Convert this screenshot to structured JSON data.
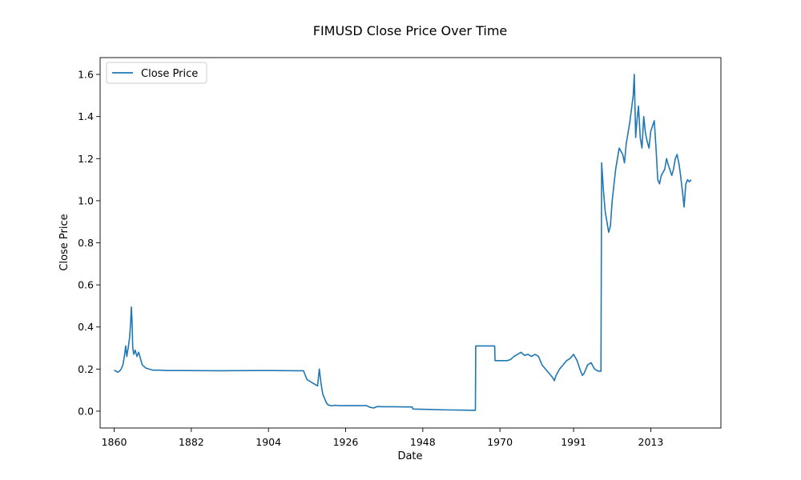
{
  "chart_data": {
    "type": "line",
    "title": "FIMUSD Close Price Over Time",
    "xlabel": "Date",
    "ylabel": "Close Price",
    "xlim": [
      1856.0,
      2033.0
    ],
    "ylim": [
      -0.08,
      1.68
    ],
    "x_ticks": [
      1860,
      1882,
      1904,
      1926,
      1948,
      1970,
      1991,
      2013
    ],
    "x_tick_labels": [
      "1860",
      "1882",
      "1904",
      "1926",
      "1948",
      "1970",
      "1991",
      "2013"
    ],
    "y_ticks": [
      0.0,
      0.2,
      0.4,
      0.6,
      0.8,
      1.0,
      1.2,
      1.4,
      1.6
    ],
    "y_tick_labels": [
      "0.0",
      "0.2",
      "0.4",
      "0.6",
      "0.8",
      "1.0",
      "1.2",
      "1.4",
      "1.6"
    ],
    "legend": {
      "position": "top-left",
      "entries": [
        "Close Price"
      ]
    },
    "grid": false,
    "series": [
      {
        "name": "Close Price",
        "color": "#1f77b4",
        "points": [
          [
            1860.0,
            0.195
          ],
          [
            1860.5,
            0.19
          ],
          [
            1861.0,
            0.185
          ],
          [
            1861.5,
            0.19
          ],
          [
            1862.0,
            0.2
          ],
          [
            1862.5,
            0.22
          ],
          [
            1863.0,
            0.27
          ],
          [
            1863.3,
            0.31
          ],
          [
            1863.6,
            0.26
          ],
          [
            1864.0,
            0.3
          ],
          [
            1864.4,
            0.35
          ],
          [
            1864.7,
            0.42
          ],
          [
            1864.9,
            0.495
          ],
          [
            1865.1,
            0.43
          ],
          [
            1865.3,
            0.3
          ],
          [
            1865.6,
            0.27
          ],
          [
            1866.0,
            0.29
          ],
          [
            1866.5,
            0.26
          ],
          [
            1867.0,
            0.28
          ],
          [
            1867.5,
            0.25
          ],
          [
            1868.0,
            0.22
          ],
          [
            1869.0,
            0.205
          ],
          [
            1870.0,
            0.2
          ],
          [
            1871.0,
            0.195
          ],
          [
            1873.0,
            0.195
          ],
          [
            1875.0,
            0.193
          ],
          [
            1880.0,
            0.193
          ],
          [
            1890.0,
            0.192
          ],
          [
            1900.0,
            0.193
          ],
          [
            1905.0,
            0.193
          ],
          [
            1912.0,
            0.192
          ],
          [
            1914.0,
            0.192
          ],
          [
            1914.5,
            0.17
          ],
          [
            1915.0,
            0.15
          ],
          [
            1916.0,
            0.14
          ],
          [
            1917.0,
            0.13
          ],
          [
            1918.0,
            0.12
          ],
          [
            1918.5,
            0.2
          ],
          [
            1919.0,
            0.13
          ],
          [
            1919.5,
            0.08
          ],
          [
            1920.0,
            0.06
          ],
          [
            1920.5,
            0.04
          ],
          [
            1921.0,
            0.03
          ],
          [
            1922.0,
            0.025
          ],
          [
            1923.0,
            0.028
          ],
          [
            1924.0,
            0.026
          ],
          [
            1925.0,
            0.026
          ],
          [
            1926.0,
            0.026
          ],
          [
            1928.0,
            0.026
          ],
          [
            1930.0,
            0.026
          ],
          [
            1932.0,
            0.026
          ],
          [
            1933.0,
            0.018
          ],
          [
            1934.0,
            0.015
          ],
          [
            1935.0,
            0.022
          ],
          [
            1937.0,
            0.021
          ],
          [
            1940.0,
            0.021
          ],
          [
            1944.0,
            0.02
          ],
          [
            1945.0,
            0.02
          ],
          [
            1945.2,
            0.01
          ],
          [
            1950.0,
            0.008
          ],
          [
            1955.0,
            0.006
          ],
          [
            1960.0,
            0.005
          ],
          [
            1963.0,
            0.004
          ],
          [
            1963.1,
            0.31
          ],
          [
            1967.0,
            0.31
          ],
          [
            1968.5,
            0.31
          ],
          [
            1968.6,
            0.24
          ],
          [
            1970.0,
            0.24
          ],
          [
            1972.0,
            0.24
          ],
          [
            1973.0,
            0.245
          ],
          [
            1974.0,
            0.26
          ],
          [
            1975.0,
            0.27
          ],
          [
            1976.0,
            0.28
          ],
          [
            1977.0,
            0.265
          ],
          [
            1978.0,
            0.27
          ],
          [
            1979.0,
            0.26
          ],
          [
            1980.0,
            0.27
          ],
          [
            1981.0,
            0.26
          ],
          [
            1982.0,
            0.22
          ],
          [
            1983.0,
            0.2
          ],
          [
            1984.0,
            0.18
          ],
          [
            1985.0,
            0.16
          ],
          [
            1985.5,
            0.145
          ],
          [
            1986.0,
            0.17
          ],
          [
            1987.0,
            0.2
          ],
          [
            1988.0,
            0.22
          ],
          [
            1989.0,
            0.24
          ],
          [
            1990.0,
            0.25
          ],
          [
            1991.0,
            0.27
          ],
          [
            1991.5,
            0.255
          ],
          [
            1992.0,
            0.24
          ],
          [
            1993.0,
            0.19
          ],
          [
            1993.5,
            0.17
          ],
          [
            1994.0,
            0.18
          ],
          [
            1995.0,
            0.22
          ],
          [
            1996.0,
            0.23
          ],
          [
            1997.0,
            0.2
          ],
          [
            1998.0,
            0.19
          ],
          [
            1998.8,
            0.19
          ],
          [
            1999.0,
            1.18
          ],
          [
            1999.5,
            1.05
          ],
          [
            2000.0,
            0.95
          ],
          [
            2000.5,
            0.9
          ],
          [
            2001.0,
            0.85
          ],
          [
            2001.5,
            0.88
          ],
          [
            2002.0,
            1.0
          ],
          [
            2003.0,
            1.15
          ],
          [
            2004.0,
            1.25
          ],
          [
            2005.0,
            1.22
          ],
          [
            2005.5,
            1.18
          ],
          [
            2006.0,
            1.27
          ],
          [
            2007.0,
            1.37
          ],
          [
            2008.0,
            1.5
          ],
          [
            2008.3,
            1.6
          ],
          [
            2008.7,
            1.3
          ],
          [
            2009.0,
            1.37
          ],
          [
            2009.5,
            1.45
          ],
          [
            2010.0,
            1.3
          ],
          [
            2010.5,
            1.25
          ],
          [
            2011.0,
            1.4
          ],
          [
            2011.5,
            1.32
          ],
          [
            2012.0,
            1.28
          ],
          [
            2012.5,
            1.25
          ],
          [
            2013.0,
            1.33
          ],
          [
            2014.0,
            1.38
          ],
          [
            2014.5,
            1.25
          ],
          [
            2015.0,
            1.1
          ],
          [
            2015.5,
            1.08
          ],
          [
            2016.0,
            1.12
          ],
          [
            2017.0,
            1.15
          ],
          [
            2017.5,
            1.2
          ],
          [
            2018.0,
            1.17
          ],
          [
            2019.0,
            1.12
          ],
          [
            2019.5,
            1.15
          ],
          [
            2020.0,
            1.2
          ],
          [
            2020.5,
            1.22
          ],
          [
            2021.0,
            1.18
          ],
          [
            2021.5,
            1.12
          ],
          [
            2022.0,
            1.05
          ],
          [
            2022.5,
            0.97
          ],
          [
            2023.0,
            1.08
          ],
          [
            2023.5,
            1.1
          ],
          [
            2024.0,
            1.09
          ],
          [
            2024.5,
            1.1
          ]
        ]
      }
    ]
  }
}
